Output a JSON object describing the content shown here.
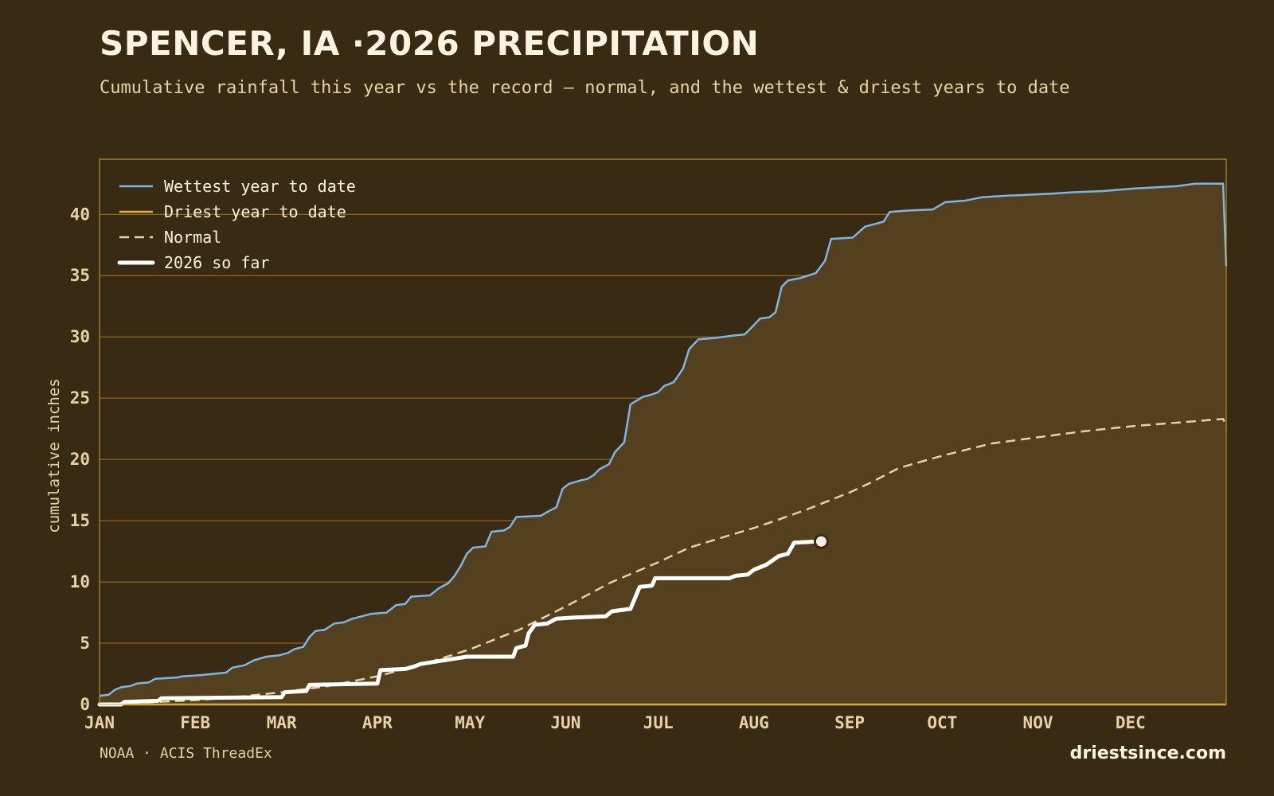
{
  "header": {
    "title": "SPENCER, IA ·2026 PRECIPITATION",
    "subtitle": "Cumulative rainfall this year vs the record — normal, and the wettest & driest years to date"
  },
  "footer": {
    "source": "NOAA · ACIS ThreadEx",
    "site": "driestsince.com"
  },
  "colors": {
    "background": "#382a13",
    "band_fill": "#54401e",
    "grid": "#a4781e",
    "frame": "#c9a23c",
    "wettest": "#7db6e3",
    "driest": "#e4ad3c",
    "normal": "#e6d2a6",
    "current": "#ffffff",
    "text": "#e6d2a6"
  },
  "chart_data": {
    "type": "line",
    "title": "SPENCER, IA ·2026 PRECIPITATION",
    "subtitle": "Cumulative rainfall this year vs the record — normal, and the wettest & driest years to date",
    "xlabel": "",
    "ylabel": "cumulative inches",
    "x_unit": "day of year",
    "xlim": [
      1,
      366
    ],
    "ylim": [
      0,
      44.5
    ],
    "y_ticks": [
      0,
      5,
      10,
      15,
      20,
      25,
      30,
      35,
      40
    ],
    "month_ticks": [
      {
        "label": "JAN",
        "day": 1
      },
      {
        "label": "FEB",
        "day": 32
      },
      {
        "label": "MAR",
        "day": 60
      },
      {
        "label": "APR",
        "day": 91
      },
      {
        "label": "MAY",
        "day": 121
      },
      {
        "label": "JUN",
        "day": 152
      },
      {
        "label": "JUL",
        "day": 182
      },
      {
        "label": "AUG",
        "day": 213
      },
      {
        "label": "SEP",
        "day": 244
      },
      {
        "label": "OCT",
        "day": 274
      },
      {
        "label": "NOV",
        "day": 305
      },
      {
        "label": "DEC",
        "day": 335
      }
    ],
    "grid": true,
    "legend_position": "top-left",
    "series": [
      {
        "name": "Wettest year to date",
        "style": "solid",
        "color": "#7db6e3",
        "points": [
          [
            1,
            0.7
          ],
          [
            4,
            0.8
          ],
          [
            6,
            1.2
          ],
          [
            8,
            1.4
          ],
          [
            11,
            1.5
          ],
          [
            13,
            1.7
          ],
          [
            17,
            1.8
          ],
          [
            19,
            2.1
          ],
          [
            26,
            2.2
          ],
          [
            28,
            2.3
          ],
          [
            34,
            2.4
          ],
          [
            38,
            2.5
          ],
          [
            42,
            2.6
          ],
          [
            44,
            3.0
          ],
          [
            48,
            3.2
          ],
          [
            51,
            3.6
          ],
          [
            55,
            3.9
          ],
          [
            59,
            4.0
          ],
          [
            62,
            4.2
          ],
          [
            64,
            4.5
          ],
          [
            67,
            4.7
          ],
          [
            69,
            5.5
          ],
          [
            71,
            6.0
          ],
          [
            74,
            6.1
          ],
          [
            77,
            6.6
          ],
          [
            80,
            6.7
          ],
          [
            83,
            7.0
          ],
          [
            86,
            7.2
          ],
          [
            89,
            7.4
          ],
          [
            94,
            7.5
          ],
          [
            97,
            8.1
          ],
          [
            100,
            8.2
          ],
          [
            102,
            8.8
          ],
          [
            108,
            8.9
          ],
          [
            111,
            9.5
          ],
          [
            114,
            9.9
          ],
          [
            116,
            10.5
          ],
          [
            118,
            11.3
          ],
          [
            120,
            12.3
          ],
          [
            122,
            12.8
          ],
          [
            126,
            12.9
          ],
          [
            128,
            14.1
          ],
          [
            132,
            14.2
          ],
          [
            134,
            14.5
          ],
          [
            136,
            15.3
          ],
          [
            144,
            15.4
          ],
          [
            146,
            15.7
          ],
          [
            149,
            16.1
          ],
          [
            151,
            17.6
          ],
          [
            153,
            18.0
          ],
          [
            157,
            18.3
          ],
          [
            159,
            18.4
          ],
          [
            161,
            18.7
          ],
          [
            163,
            19.2
          ],
          [
            166,
            19.6
          ],
          [
            168,
            20.6
          ],
          [
            171,
            21.4
          ],
          [
            173,
            24.5
          ],
          [
            177,
            25.1
          ],
          [
            180,
            25.3
          ],
          [
            182,
            25.5
          ],
          [
            184,
            26.0
          ],
          [
            187,
            26.3
          ],
          [
            190,
            27.4
          ],
          [
            192,
            29.0
          ],
          [
            195,
            29.8
          ],
          [
            200,
            29.9
          ],
          [
            206,
            30.1
          ],
          [
            210,
            30.2
          ],
          [
            212,
            30.7
          ],
          [
            215,
            31.5
          ],
          [
            218,
            31.6
          ],
          [
            220,
            32.0
          ],
          [
            222,
            34.1
          ],
          [
            224,
            34.6
          ],
          [
            228,
            34.8
          ],
          [
            233,
            35.2
          ],
          [
            236,
            36.2
          ],
          [
            238,
            38.0
          ],
          [
            245,
            38.1
          ],
          [
            249,
            39.0
          ],
          [
            255,
            39.4
          ],
          [
            257,
            40.2
          ],
          [
            262,
            40.3
          ],
          [
            271,
            40.4
          ],
          [
            275,
            41.0
          ],
          [
            281,
            41.1
          ],
          [
            287,
            41.4
          ],
          [
            293,
            41.5
          ],
          [
            302,
            41.6
          ],
          [
            310,
            41.7
          ],
          [
            316,
            41.8
          ],
          [
            326,
            41.9
          ],
          [
            336,
            42.1
          ],
          [
            343,
            42.2
          ],
          [
            350,
            42.3
          ],
          [
            356,
            42.5
          ],
          [
            365,
            42.5
          ],
          [
            366,
            35.8
          ]
        ]
      },
      {
        "name": "Driest year to date",
        "style": "solid",
        "color": "#e4ad3c",
        "points": [
          [
            1,
            0.0
          ],
          [
            366,
            0.0
          ]
        ]
      },
      {
        "name": "Normal",
        "style": "dashed",
        "color": "#e6d2a6",
        "points": [
          [
            1,
            0.0
          ],
          [
            15,
            0.15
          ],
          [
            32,
            0.35
          ],
          [
            45,
            0.6
          ],
          [
            60,
            1.0
          ],
          [
            75,
            1.5
          ],
          [
            91,
            2.3
          ],
          [
            106,
            3.3
          ],
          [
            121,
            4.5
          ],
          [
            137,
            6.1
          ],
          [
            152,
            8.0
          ],
          [
            167,
            10.0
          ],
          [
            182,
            11.6
          ],
          [
            192,
            12.8
          ],
          [
            205,
            13.8
          ],
          [
            213,
            14.4
          ],
          [
            220,
            15.0
          ],
          [
            230,
            15.9
          ],
          [
            244,
            17.3
          ],
          [
            250,
            18.0
          ],
          [
            260,
            19.3
          ],
          [
            274,
            20.3
          ],
          [
            290,
            21.3
          ],
          [
            305,
            21.8
          ],
          [
            320,
            22.3
          ],
          [
            335,
            22.7
          ],
          [
            350,
            23.0
          ],
          [
            365,
            23.3
          ],
          [
            366,
            22.8
          ]
        ]
      },
      {
        "name": "2026 so far",
        "style": "solid-thick",
        "color": "#ffffff",
        "points": [
          [
            1,
            0.0
          ],
          [
            8,
            0.0
          ],
          [
            9,
            0.2
          ],
          [
            20,
            0.3
          ],
          [
            21,
            0.5
          ],
          [
            60,
            0.6
          ],
          [
            61,
            1.0
          ],
          [
            68,
            1.1
          ],
          [
            69,
            1.6
          ],
          [
            91,
            1.7
          ],
          [
            92,
            2.8
          ],
          [
            100,
            2.9
          ],
          [
            103,
            3.1
          ],
          [
            105,
            3.3
          ],
          [
            120,
            3.9
          ],
          [
            135,
            3.9
          ],
          [
            136,
            4.6
          ],
          [
            139,
            4.8
          ],
          [
            140,
            5.8
          ],
          [
            142,
            6.5
          ],
          [
            146,
            6.6
          ],
          [
            149,
            7.0
          ],
          [
            155,
            7.1
          ],
          [
            165,
            7.2
          ],
          [
            167,
            7.6
          ],
          [
            173,
            7.8
          ],
          [
            176,
            9.6
          ],
          [
            180,
            9.7
          ],
          [
            181,
            10.3
          ],
          [
            205,
            10.3
          ],
          [
            207,
            10.5
          ],
          [
            211,
            10.6
          ],
          [
            213,
            11.0
          ],
          [
            217,
            11.4
          ],
          [
            221,
            12.1
          ],
          [
            224,
            12.3
          ],
          [
            226,
            13.2
          ],
          [
            233,
            13.3
          ]
        ]
      }
    ]
  },
  "legend": [
    {
      "label": "Wettest year to date",
      "style": "solid",
      "color": "#7db6e3"
    },
    {
      "label": "Driest year to date",
      "style": "solid",
      "color": "#e4ad3c"
    },
    {
      "label": "Normal",
      "style": "dashed",
      "color": "#e6d2a6"
    },
    {
      "label": "2026 so far",
      "style": "solid-thick",
      "color": "#ffffff"
    }
  ]
}
